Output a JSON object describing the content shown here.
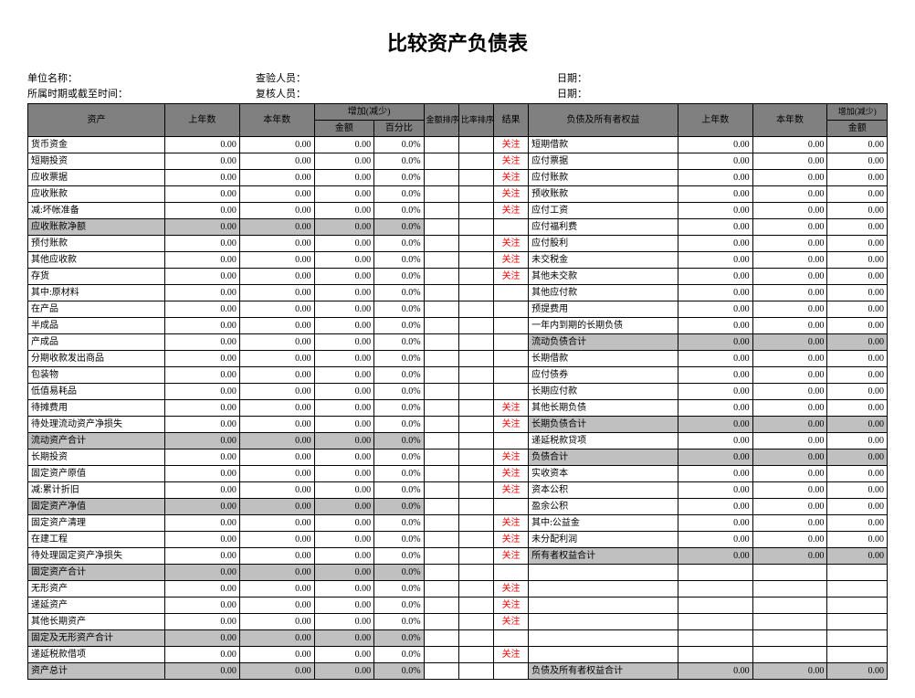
{
  "title": "比较资产负债表",
  "meta": {
    "unit_label": "单位名称：",
    "period_label": "所属时期或截至时间：",
    "inspector_label": "查验人员：",
    "reviewer_label": "复核人员：",
    "date_label": "日期："
  },
  "headers": {
    "asset": "资产",
    "prev": "上年数",
    "curr": "本年数",
    "change": "增加(减少)",
    "amount": "金额",
    "pct": "百分比",
    "amt_rank": "金额排序",
    "pct_rank": "比率排序",
    "result": "结果",
    "liab": "负债及所有者权益"
  },
  "val": {
    "zero": "0.00",
    "zpct": "0.0%",
    "attn": "关注"
  },
  "colors": {
    "header_bg": "#808080",
    "shade_bg": "#c0c0c0",
    "attn_color": "#ff0000",
    "border": "#000000",
    "text": "#000000",
    "bg": "#ffffff"
  },
  "rows": [
    {
      "a": "货币资金",
      "r": "关注",
      "l": "短期借款",
      "lfill": true
    },
    {
      "a": "短期投资",
      "r": "关注",
      "l": "应付票据",
      "lfill": true
    },
    {
      "a": "应收票据",
      "r": "关注",
      "l": "应付账款",
      "lfill": true
    },
    {
      "a": "应收账款",
      "r": "关注",
      "l": "预收账款",
      "lfill": true
    },
    {
      "a": "减:坏帐准备",
      "r": "关注",
      "l": "应付工资",
      "lfill": true
    },
    {
      "a": "应收账款净额",
      "shade": true,
      "l": "应付福利费",
      "lfill": true,
      "lshade": false
    },
    {
      "a": "预付账款",
      "r": "关注",
      "l": "应付股利",
      "lfill": true
    },
    {
      "a": "其他应收款",
      "r": "关注",
      "l": "未交税金",
      "lfill": true
    },
    {
      "a": "存货",
      "r": "关注",
      "l": "其他未交款",
      "lfill": true
    },
    {
      "a": "其中:原材料",
      "l": "其他应付款",
      "lfill": true
    },
    {
      "a": "在产品",
      "indent": 1,
      "l": "预提费用",
      "lfill": true
    },
    {
      "a": "半成品",
      "indent": 1,
      "l": "一年内到期的长期负债",
      "lindent": 1,
      "lfill": true
    },
    {
      "a": "产成品",
      "indent": 1,
      "l": "流动负债合计",
      "lindent": 2,
      "lshade": true,
      "lfill": true
    },
    {
      "a": "分期收款发出商品",
      "indent": 1,
      "l": "长期借款",
      "lfill": true
    },
    {
      "a": "包装物",
      "indent": 1,
      "l": "应付债券",
      "lfill": true
    },
    {
      "a": "低值易耗品",
      "indent": 1,
      "l": "长期应付款",
      "lfill": true
    },
    {
      "a": "待摊费用",
      "r": "关注",
      "l": "其他长期负债",
      "lfill": true
    },
    {
      "a": "待处理流动资产净损失",
      "r": "关注",
      "l": "长期负债合计",
      "lindent": 2,
      "lshade": true,
      "lfill": true
    },
    {
      "a": "流动资产合计",
      "indent": 1,
      "shade": true,
      "l": "递延税款贷项",
      "lfill": true,
      "lshade": false
    },
    {
      "a": "长期投资",
      "r": "关注",
      "l": "负债合计",
      "lindent": 2,
      "lshade": true,
      "lfill": true
    },
    {
      "a": "固定资产原值",
      "r": "关注",
      "l": "实收资本",
      "lfill": true
    },
    {
      "a": "减:累计折旧",
      "r": "关注",
      "l": "资本公积",
      "lfill": true
    },
    {
      "a": "固定资产净值",
      "shade": true,
      "l": "盈余公积",
      "lfill": true,
      "lshade": false
    },
    {
      "a": "固定资产清理",
      "r": "关注",
      "l": "其中:公益金",
      "lfill": true
    },
    {
      "a": "在建工程",
      "r": "关注",
      "l": "未分配利润",
      "lfill": true
    },
    {
      "a": "待处理固定资产净损失",
      "r": "关注",
      "l": "所有者权益合计",
      "lindent": 2,
      "lshade": true,
      "lfill": true
    },
    {
      "a": "固定资产合计",
      "indent": 1,
      "shade": true,
      "l": "",
      "lfill": false,
      "lshade": false
    },
    {
      "a": "无形资产",
      "r": "关注",
      "l": "",
      "lfill": false
    },
    {
      "a": "递延资产",
      "r": "关注",
      "l": "",
      "lfill": false
    },
    {
      "a": "其他长期资产",
      "r": "关注",
      "l": "",
      "lfill": false
    },
    {
      "a": "固定及无形资产合计",
      "indent": 1,
      "shade": true,
      "l": "",
      "lfill": false,
      "lshade": false
    },
    {
      "a": "递延税款借项",
      "r": "关注",
      "l": "",
      "lfill": false
    },
    {
      "a": "资产总计",
      "indent": 1,
      "shade": true,
      "l": "负债及所有者权益合计",
      "lindent": 1,
      "lfill": true,
      "lshade": true
    }
  ]
}
